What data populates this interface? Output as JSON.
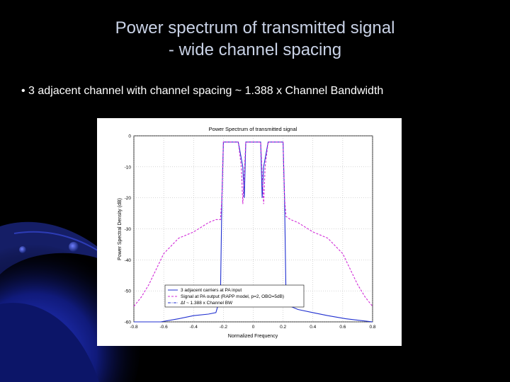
{
  "slide": {
    "title_line1": "Power spectrum of transmitted signal",
    "title_line2": "- wide channel spacing",
    "bullet": "• 3 adjacent channel  with channel spacing ~ 1.388 x Channel Bandwidth",
    "colors": {
      "background": "#000000",
      "title": "#c9d2e6",
      "bullet": "#ffffff",
      "accent": "#1d2aa8"
    }
  },
  "chart_data": {
    "type": "line",
    "title": "Power Spectrum of transmitted signal",
    "xlabel": "Normalized Frequency",
    "ylabel": "Power Spectral Density (dB)",
    "xlim": [
      -0.8,
      0.8
    ],
    "ylim": [
      -60,
      0
    ],
    "xticks": [
      -0.8,
      -0.6,
      -0.4,
      -0.2,
      0,
      0.2,
      0.4,
      0.6,
      0.8
    ],
    "xtick_labels": [
      "-0.8",
      "-0.6",
      "-0.4",
      "-0.2",
      "0",
      "0.2",
      "0.4",
      "0.6",
      "0.8"
    ],
    "yticks": [
      0,
      -10,
      -20,
      -30,
      -40,
      -50,
      -60
    ],
    "ytick_labels": [
      "0",
      "-10",
      "-20",
      "-30",
      "-40",
      "-50",
      "-60"
    ],
    "grid": true,
    "legend_position": "lower-center",
    "series": [
      {
        "name": "3 adjacent carriers at PA input",
        "color": "#1f2fd0",
        "style": "solid",
        "x": [
          -0.8,
          -0.62,
          -0.5,
          -0.4,
          -0.3,
          -0.25,
          -0.22,
          -0.21,
          -0.2,
          -0.15,
          -0.1,
          -0.07,
          -0.06,
          -0.05,
          0,
          0.05,
          0.06,
          0.07,
          0.1,
          0.15,
          0.2,
          0.21,
          0.22,
          0.25,
          0.3,
          0.4,
          0.5,
          0.62,
          0.8
        ],
        "y": [
          -60,
          -60,
          -59,
          -58,
          -57.5,
          -57,
          -52,
          -20,
          -2,
          -2,
          -2,
          -10,
          -20,
          -2,
          -2,
          -2,
          -20,
          -10,
          -2,
          -2,
          -2,
          -20,
          -52,
          -55,
          -56,
          -57,
          -58,
          -59,
          -60
        ]
      },
      {
        "name": "Signal at PA output (RAPP model, p=2, OBO=5dB)",
        "color": "#d12bd8",
        "style": "dashed",
        "x": [
          -0.8,
          -0.75,
          -0.7,
          -0.6,
          -0.5,
          -0.4,
          -0.3,
          -0.25,
          -0.22,
          -0.21,
          -0.2,
          -0.15,
          -0.1,
          -0.08,
          -0.07,
          -0.05,
          0,
          0.05,
          0.07,
          0.08,
          0.1,
          0.15,
          0.2,
          0.21,
          0.22,
          0.25,
          0.3,
          0.4,
          0.5,
          0.6,
          0.7,
          0.75,
          0.8
        ],
        "y": [
          -55,
          -52,
          -48,
          -38,
          -33,
          -31,
          -28,
          -27,
          -27,
          -20,
          -2,
          -2,
          -2,
          -10,
          -22,
          -2,
          -2,
          -2,
          -22,
          -10,
          -2,
          -2,
          -2,
          -20,
          -26,
          -27,
          -28,
          -31,
          -33,
          -38,
          -48,
          -52,
          -55
        ]
      },
      {
        "name": "Δf ~ 1.388 x Channel BW",
        "color": "#1f2fd0",
        "style": "dashdot",
        "x": [],
        "y": []
      }
    ]
  }
}
